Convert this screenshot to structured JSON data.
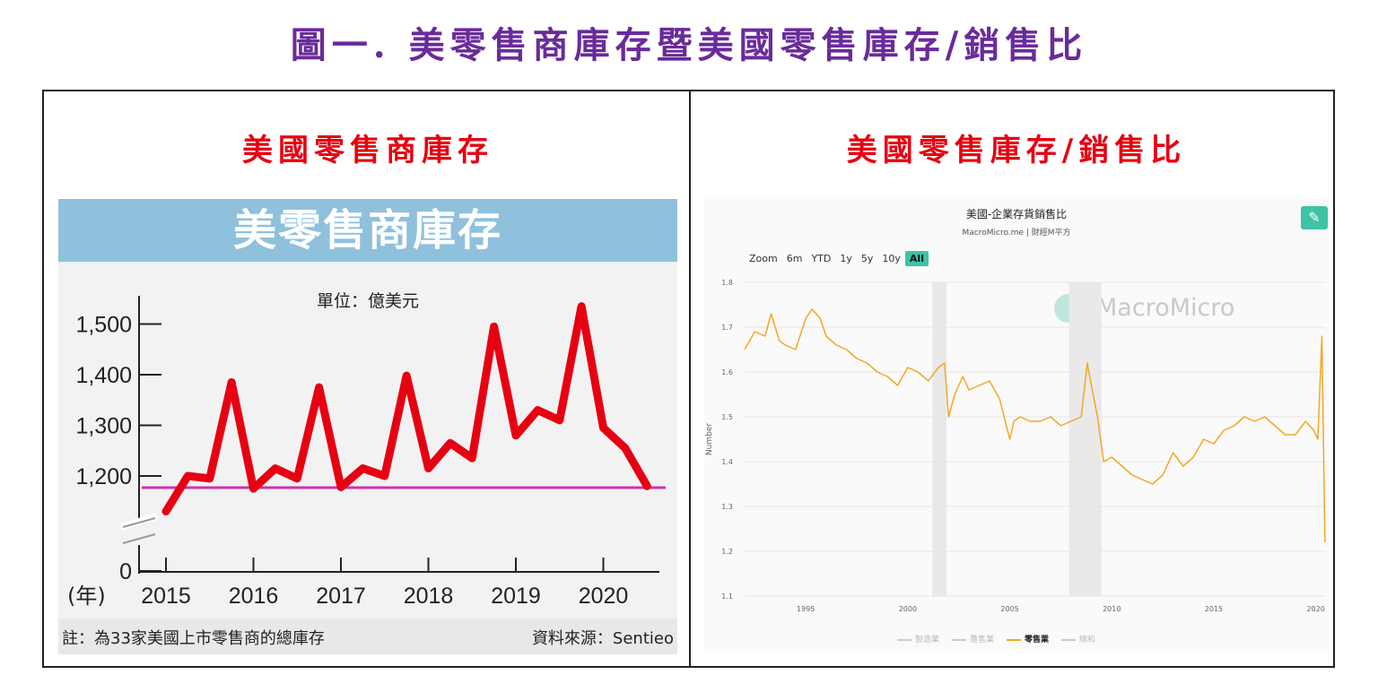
{
  "page": {
    "main_title": "圖一. 美零售商庫存暨美國零售庫存/銷售比",
    "left_panel_title": "美國零售商庫存",
    "right_panel_title": "美國零售庫存/銷售比"
  },
  "left": {
    "banner": "美零售商庫存",
    "note": "註：為33家美國上市零售商的總庫存",
    "source": "資料來源：Sentieo"
  },
  "right": {
    "title": "美國-企業存貨銷售比",
    "subtitle": "MacroMicro.me | 財經M平方",
    "watermark": "MacroMicro",
    "edit_icon": "pencil-icon",
    "zoom_label": "Zoom",
    "zoom_options": [
      "6m",
      "YTD",
      "1y",
      "5y",
      "10y",
      "All"
    ],
    "zoom_active": "All",
    "legend": [
      {
        "label": "製造業",
        "active": false,
        "color": "#cccccc"
      },
      {
        "label": "躉售業",
        "active": false,
        "color": "#cccccc"
      },
      {
        "label": "零售業",
        "active": true,
        "color": "#f5a623"
      },
      {
        "label": "總和",
        "active": false,
        "color": "#cccccc"
      }
    ]
  },
  "chart_data": [
    {
      "type": "line",
      "title": "美零售商庫存",
      "subtitle": "單位：億美元",
      "xlabel": "(年)",
      "ylabel": "",
      "ylim": [
        0,
        1550
      ],
      "axis_break": true,
      "y_ticks": [
        "0",
        "1,200",
        "1,300",
        "1,400",
        "1,500"
      ],
      "x_ticks": [
        "2015",
        "2016",
        "2017",
        "2018",
        "2019",
        "2020"
      ],
      "line_color": "#e60012",
      "reference_line": {
        "value": 1177,
        "color": "#cc33aa"
      },
      "series": [
        {
          "name": "",
          "x": [
            2015.0,
            2015.25,
            2015.5,
            2015.75,
            2016.0,
            2016.25,
            2016.5,
            2016.75,
            2017.0,
            2017.25,
            2017.5,
            2017.75,
            2018.0,
            2018.25,
            2018.5,
            2018.75,
            2019.0,
            2019.25,
            2019.5,
            2019.75,
            2020.0,
            2020.25,
            2020.5
          ],
          "values": [
            1130,
            1200,
            1195,
            1385,
            1175,
            1215,
            1195,
            1375,
            1178,
            1215,
            1200,
            1398,
            1215,
            1265,
            1235,
            1495,
            1280,
            1330,
            1310,
            1535,
            1295,
            1255,
            1180
          ]
        }
      ]
    },
    {
      "type": "line",
      "title": "美國-企業存貨銷售比",
      "subtitle": "MacroMicro.me | 財經M平方",
      "xlabel": "",
      "ylabel": "Number",
      "xlim": [
        1992,
        2020.5
      ],
      "ylim": [
        1.1,
        1.8
      ],
      "x_ticks": [
        "1995",
        "2000",
        "2005",
        "2010",
        "2015",
        "2020"
      ],
      "y_ticks": [
        "1.1",
        "1.2",
        "1.3",
        "1.4",
        "1.5",
        "1.6",
        "1.7",
        "1.8"
      ],
      "recession_bands": [
        [
          2001.2,
          2001.9
        ],
        [
          2007.9,
          2009.5
        ]
      ],
      "line_color": "#f5a623",
      "series": [
        {
          "name": "零售業",
          "x": [
            1992.0,
            1992.5,
            1993.0,
            1993.3,
            1993.7,
            1994.0,
            1994.5,
            1995.0,
            1995.3,
            1995.7,
            1996.0,
            1996.5,
            1997.0,
            1997.5,
            1998.0,
            1998.5,
            1999.0,
            1999.5,
            2000.0,
            2000.5,
            2001.0,
            2001.5,
            2001.8,
            2002.0,
            2002.3,
            2002.7,
            2003.0,
            2003.5,
            2004.0,
            2004.5,
            2005.0,
            2005.2,
            2005.5,
            2006.0,
            2006.5,
            2007.0,
            2007.5,
            2008.0,
            2008.5,
            2008.8,
            2009.0,
            2009.3,
            2009.6,
            2010.0,
            2010.5,
            2011.0,
            2011.5,
            2012.0,
            2012.5,
            2013.0,
            2013.5,
            2014.0,
            2014.5,
            2015.0,
            2015.5,
            2016.0,
            2016.5,
            2017.0,
            2017.5,
            2018.0,
            2018.5,
            2019.0,
            2019.5,
            2019.9,
            2020.1,
            2020.3,
            2020.45
          ],
          "values": [
            1.65,
            1.69,
            1.68,
            1.73,
            1.67,
            1.66,
            1.65,
            1.72,
            1.74,
            1.72,
            1.68,
            1.66,
            1.65,
            1.63,
            1.62,
            1.6,
            1.59,
            1.57,
            1.61,
            1.6,
            1.58,
            1.61,
            1.62,
            1.5,
            1.55,
            1.59,
            1.56,
            1.57,
            1.58,
            1.54,
            1.45,
            1.49,
            1.5,
            1.49,
            1.49,
            1.5,
            1.48,
            1.49,
            1.5,
            1.62,
            1.57,
            1.5,
            1.4,
            1.41,
            1.39,
            1.37,
            1.36,
            1.35,
            1.37,
            1.42,
            1.39,
            1.41,
            1.45,
            1.44,
            1.47,
            1.48,
            1.5,
            1.49,
            1.5,
            1.48,
            1.46,
            1.46,
            1.49,
            1.47,
            1.45,
            1.68,
            1.22
          ]
        }
      ]
    }
  ]
}
